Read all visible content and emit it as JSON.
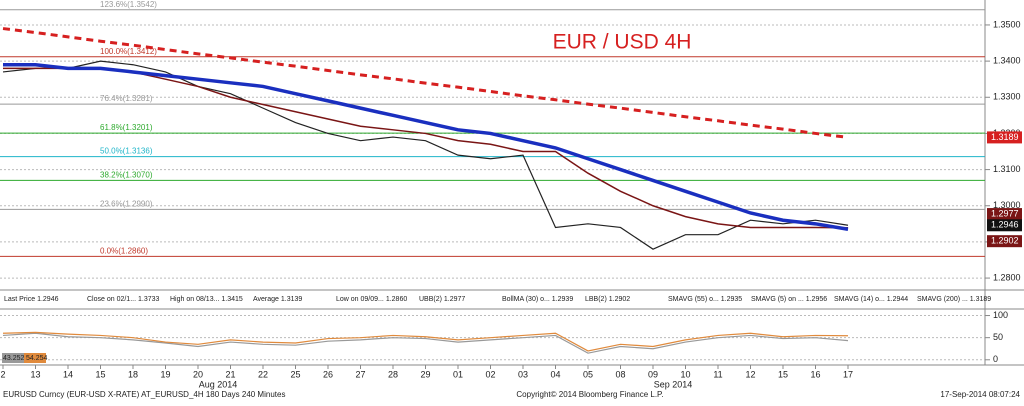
{
  "chart_data": [
    {
      "type": "line",
      "annotation": "EUR / USD 4H",
      "categories": [
        "2",
        "13",
        "14",
        "15",
        "18",
        "19",
        "20",
        "21",
        "22",
        "25",
        "26",
        "27",
        "28",
        "29",
        "01",
        "02",
        "03",
        "04",
        "05",
        "08",
        "09",
        "10",
        "11",
        "12",
        "15",
        "16",
        "17"
      ],
      "months": [
        {
          "label": "Aug 2014",
          "index": 6
        },
        {
          "label": "Sep 2014",
          "index": 20
        }
      ],
      "ylim": [
        1.2767,
        1.3569
      ],
      "yticks": [
        {
          "value": 1.28,
          "label": "1.2800"
        },
        {
          "value": 1.29,
          "label": "1.2900"
        },
        {
          "value": 1.3,
          "label": "1.3000"
        },
        {
          "value": 1.31,
          "label": "1.3100"
        },
        {
          "value": 1.32,
          "label": "1.3200"
        },
        {
          "value": 1.33,
          "label": "1.3300"
        },
        {
          "value": 1.34,
          "label": "1.3400"
        },
        {
          "value": 1.35,
          "label": "1.3500"
        }
      ],
      "grid": true,
      "fib_levels": [
        {
          "value": 1.3542,
          "label": "123.6%(1.3542)",
          "color": "#999999"
        },
        {
          "value": 1.3412,
          "label": "100.0%(1.3412)",
          "color": "#c0392b"
        },
        {
          "value": 1.3281,
          "label": "76.4%(1.3281)",
          "color": "#999999"
        },
        {
          "value": 1.3201,
          "label": "61.8%(1.3201)",
          "color": "#2eaa2e"
        },
        {
          "value": 1.3136,
          "label": "50.0%(1.3136)",
          "color": "#1fb5c9"
        },
        {
          "value": 1.307,
          "label": "38.2%(1.3070)",
          "color": "#2eaa2e"
        },
        {
          "value": 1.299,
          "label": "23.6%(1.2990)",
          "color": "#999999"
        },
        {
          "value": 1.286,
          "label": "0.0%(1.2860)",
          "color": "#c0392b"
        }
      ],
      "series": [
        {
          "color": "#222222",
          "width": 1.2,
          "dash": "",
          "values": [
            1.337,
            1.338,
            1.338,
            1.34,
            1.339,
            1.337,
            1.333,
            1.331,
            1.327,
            1.323,
            1.32,
            1.318,
            1.319,
            1.318,
            1.314,
            1.313,
            1.314,
            1.294,
            1.295,
            1.294,
            1.288,
            1.292,
            1.292,
            1.296,
            1.295,
            1.296,
            1.2946
          ]
        },
        {
          "color": "#7a1515",
          "width": 1.5,
          "dash": "",
          "values": [
            1.338,
            1.338,
            1.338,
            1.338,
            1.337,
            1.335,
            1.333,
            1.33,
            1.328,
            1.326,
            1.324,
            1.322,
            1.321,
            1.32,
            1.318,
            1.317,
            1.315,
            1.315,
            1.309,
            1.304,
            1.3,
            1.297,
            1.295,
            1.294,
            1.294,
            1.294,
            1.2939
          ]
        },
        {
          "color": "#1a2fbf",
          "width": 3.5,
          "dash": "",
          "values": [
            1.339,
            1.339,
            1.338,
            1.338,
            1.337,
            1.336,
            1.335,
            1.334,
            1.333,
            1.331,
            1.329,
            1.327,
            1.325,
            1.323,
            1.321,
            1.32,
            1.318,
            1.316,
            1.313,
            1.31,
            1.307,
            1.304,
            1.301,
            1.298,
            1.296,
            1.295,
            1.2935
          ]
        },
        {
          "color": "#d62020",
          "width": 3,
          "dash": "7 5",
          "values": [
            1.349,
            1.3479,
            1.3467,
            1.3455,
            1.3444,
            1.3432,
            1.342,
            1.3409,
            1.3397,
            1.3386,
            1.3374,
            1.3362,
            1.3351,
            1.3339,
            1.3328,
            1.3316,
            1.3304,
            1.3293,
            1.3281,
            1.327,
            1.3258,
            1.3246,
            1.3235,
            1.3223,
            1.3212,
            1.32,
            1.3189
          ]
        }
      ],
      "markers": [
        {
          "value": 1.3189,
          "label": "1.3189",
          "color": "#d62020"
        },
        {
          "value": 1.2977,
          "label": "1.2977",
          "color": "#7a1515"
        },
        {
          "value": 1.2946,
          "label": "1.2946",
          "color": "#111111"
        },
        {
          "value": 1.2902,
          "label": "1.2902",
          "color": "#7a1515"
        }
      ]
    },
    {
      "type": "line",
      "ylim": [
        -5,
        108
      ],
      "yticks": [
        0,
        50,
        100
      ],
      "series": [
        {
          "color": "#999999",
          "values": [
            55,
            60,
            52,
            50,
            45,
            38,
            30,
            40,
            35,
            33,
            42,
            45,
            50,
            48,
            40,
            45,
            50,
            55,
            15,
            30,
            25,
            40,
            50,
            55,
            48,
            50,
            43.2523
          ]
        },
        {
          "color": "#e08a3c",
          "values": [
            60,
            62,
            58,
            55,
            50,
            40,
            35,
            45,
            40,
            38,
            48,
            50,
            55,
            52,
            45,
            50,
            55,
            60,
            20,
            35,
            30,
            45,
            55,
            60,
            52,
            55,
            54.254
          ]
        }
      ]
    }
  ],
  "legend_row": [
    "Last Price 1.2946",
    "Close on 02/1... 1.3733",
    "High on 08/13... 1.3415",
    "Average 1.3139",
    "Low on 09/09... 1.2860",
    "UBB(2) 1.2977",
    "BollMA (30) o... 1.2939",
    "LBB(2) 1.2902",
    "SMAVG (55) o... 1.2935",
    "SMAVG (5) on ... 1.2956",
    "SMAVG (14) o... 1.2944",
    "SMAVG (200) ... 1.3189"
  ],
  "footer": {
    "left": "EURUSD Curncy (EUR-USD X-RATE) AT_EURUSD_4H 180 Days 240 Minutes",
    "center": "Copyright© 2014 Bloomberg Finance L.P.",
    "right": "17-Sep-2014 08:07:24"
  }
}
